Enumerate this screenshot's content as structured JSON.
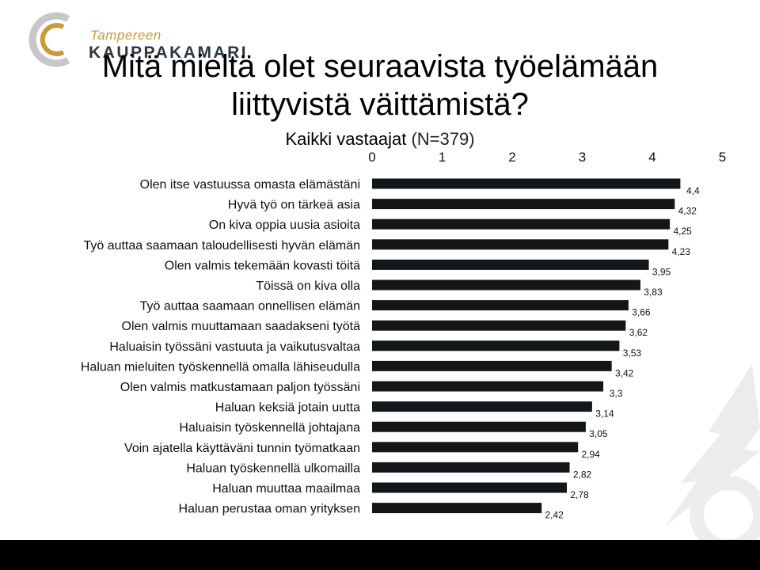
{
  "logo": {
    "line1": "Tampereen",
    "line2": "KAUPPAKAMARI"
  },
  "title": "Mitä mieltä olet seuraavista työelämään liittyvistä väittämistä?",
  "subtitle": {
    "main": "Kaikki vastaajat",
    "sample": "(N=379)"
  },
  "colors": {
    "bar": "#14171a",
    "logo_gold": "#c79a3a",
    "logo_dark": "#2b3740"
  },
  "chart_data": {
    "type": "bar",
    "orientation": "horizontal",
    "title": "Mitä mieltä olet seuraavista työelämään liittyvistä väittämistä?",
    "subtitle": "Kaikki vastaajat (N=379)",
    "xlim": [
      0,
      5
    ],
    "xticks": [
      "0",
      "1",
      "2",
      "3",
      "4",
      "5"
    ],
    "grid": false,
    "categories": [
      "Olen itse vastuussa omasta elämästäni",
      "Hyvä työ on tärkeä asia",
      "On kiva oppia uusia asioita",
      "Työ auttaa saamaan taloudellisesti hyvän elämän",
      "Olen valmis tekemään kovasti töitä",
      "Töissä on kiva olla",
      "Työ auttaa saamaan onnellisen elämän",
      "Olen valmis muuttamaan saadakseni työtä",
      "Haluaisin työssäni vastuuta ja vaikutusvaltaa",
      "Haluan mieluiten työskennellä omalla lähiseudulla",
      "Olen valmis matkustamaan paljon työssäni",
      "Haluan keksiä jotain uutta",
      "Haluaisin työskennellä johtajana",
      "Voin ajatella käyttäväni tunnin työmatkaan",
      "Haluan työskennellä ulkomailla",
      "Haluan muuttaa maailmaa",
      "Haluan perustaa oman yrityksen"
    ],
    "values": [
      4.4,
      4.32,
      4.25,
      4.23,
      3.95,
      3.83,
      3.66,
      3.62,
      3.53,
      3.42,
      3.3,
      3.14,
      3.05,
      2.94,
      2.82,
      2.78,
      2.42
    ],
    "value_labels": [
      "4,4",
      "4,32",
      "4,25",
      "4,23",
      "3,95",
      "3,83",
      "3,66",
      "3,62",
      "3,53",
      "3,42",
      "3,3",
      "3,14",
      "3,05",
      "2,94",
      "2,82",
      "2,78",
      "2,42"
    ]
  }
}
